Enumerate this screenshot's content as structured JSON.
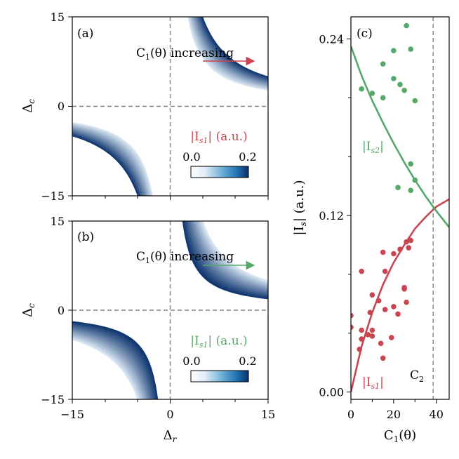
{
  "colors": {
    "blue_light": "#deebf7",
    "blue_dark": "#08306b",
    "red": "#c94550",
    "green": "#55a868",
    "dash": "#808080"
  },
  "chart_data": [
    {
      "panel": "(a)",
      "type": "heatmap",
      "xlim": [
        -15,
        15
      ],
      "ylim": [
        -15,
        15
      ],
      "xticks": [],
      "yticks": [
        "15",
        "0",
        "−15"
      ],
      "ylabel": "Δc",
      "ylabel_main": "Δ",
      "ylabel_sub": "c",
      "arrow_text": "C1(θ) increasing",
      "arrow_main": "C",
      "arrow_sub": "1",
      "arrow_rest": "(θ) increasing",
      "arrow_color": "red",
      "colorbar_title": "|Is1| (a.u.)",
      "colorbar_main": "|I",
      "colorbar_sub": "s1",
      "colorbar_rest": "| (a.u.)",
      "colorbar_color": "red",
      "colorbar_min": "0.0",
      "colorbar_max": "0.2",
      "colorbar_range": [
        0.0,
        0.2
      ],
      "bands": [
        {
          "quadrant": "upper-right",
          "product_range": [
            40,
            75
          ],
          "intensity": "dark at high C1"
        },
        {
          "quadrant": "lower-left",
          "product_range": [
            40,
            75
          ],
          "intensity": "dark at high C1"
        }
      ]
    },
    {
      "panel": "(b)",
      "type": "heatmap",
      "xlim": [
        -15,
        15
      ],
      "ylim": [
        -15,
        15
      ],
      "xticks": [
        "−15",
        "0",
        "15"
      ],
      "yticks": [
        "15",
        "0",
        "−15"
      ],
      "xlabel": "Δr",
      "xlabel_main": "Δ",
      "xlabel_sub": "r",
      "ylabel": "Δc",
      "ylabel_main": "Δ",
      "ylabel_sub": "c",
      "arrow_text": "C1(θ) increasing",
      "arrow_main": "C",
      "arrow_sub": "1",
      "arrow_rest": "(θ) increasing",
      "arrow_color": "green",
      "colorbar_title": "|Is1| (a.u.)",
      "colorbar_main": "|I",
      "colorbar_sub": "s1",
      "colorbar_rest": "| (a.u.)",
      "colorbar_color": "green",
      "colorbar_min": "0.0",
      "colorbar_max": "0.2",
      "colorbar_range": [
        0.0,
        0.2
      ],
      "bands": [
        {
          "quadrant": "upper-right",
          "product_range": [
            28,
            75
          ],
          "intensity": "dark at low C1"
        },
        {
          "quadrant": "lower-left",
          "product_range": [
            28,
            75
          ],
          "intensity": "dark at low C1"
        }
      ]
    },
    {
      "panel": "(c)",
      "type": "scatter",
      "xlim": [
        0,
        46
      ],
      "ylim": [
        -0.005,
        0.255
      ],
      "xticks": [
        0,
        20,
        40
      ],
      "xtick_labels": [
        "0",
        "20",
        "40"
      ],
      "yticks": [
        0.0,
        0.12,
        0.24
      ],
      "ytick_labels": [
        "0.00",
        "0.12",
        "0.24"
      ],
      "xlabel": "C1(θ)",
      "xlabel_main": "C",
      "xlabel_sub": "1",
      "xlabel_rest": "(θ)",
      "ylabel": "|Is| (a.u.)",
      "ylabel_main": "|I",
      "ylabel_sub": "s",
      "ylabel_rest": "| (a.u.)",
      "vline_x": 38.5,
      "vline_label": "C2",
      "vline_main": "C",
      "vline_sub": "2",
      "series": [
        {
          "name": "|Is1|",
          "label_main": "|I",
          "label_sub": "s1",
          "label_rest": "|",
          "color": "red",
          "points": [
            [
              0,
              0.052
            ],
            [
              0,
              0.044
            ],
            [
              4,
              0.029
            ],
            [
              5,
              0.036
            ],
            [
              5,
              0.042
            ],
            [
              5,
              0.082
            ],
            [
              8,
              0.039
            ],
            [
              9,
              0.054
            ],
            [
              10,
              0.038
            ],
            [
              10,
              0.042
            ],
            [
              10,
              0.066
            ],
            [
              13,
              0.062
            ],
            [
              14,
              0.033
            ],
            [
              15,
              0.023
            ],
            [
              15,
              0.095
            ],
            [
              16,
              0.082
            ],
            [
              16,
              0.056
            ],
            [
              19,
              0.037
            ],
            [
              20,
              0.058
            ],
            [
              20,
              0.094
            ],
            [
              22,
              0.053
            ],
            [
              23,
              0.097
            ],
            [
              25,
              0.07
            ],
            [
              25,
              0.071
            ],
            [
              26,
              0.102
            ],
            [
              26,
              0.061
            ],
            [
              27,
              0.098
            ],
            [
              28,
              0.103
            ]
          ],
          "fit": [
            [
              0,
              0.0
            ],
            [
              5,
              0.031
            ],
            [
              10,
              0.054
            ],
            [
              15,
              0.073
            ],
            [
              20,
              0.088
            ],
            [
              25,
              0.1
            ],
            [
              30,
              0.111
            ],
            [
              35,
              0.119
            ],
            [
              40,
              0.126
            ],
            [
              46,
              0.131
            ]
          ]
        },
        {
          "name": "|Is2|",
          "label_main": "|I",
          "label_sub": "s2",
          "label_rest": "|",
          "color": "green",
          "points": [
            [
              5,
              0.206
            ],
            [
              10,
              0.203
            ],
            [
              15,
              0.2
            ],
            [
              15,
              0.223
            ],
            [
              20,
              0.232
            ],
            [
              20,
              0.213
            ],
            [
              22,
              0.139
            ],
            [
              23,
              0.209
            ],
            [
              25,
              0.205
            ],
            [
              26,
              0.249
            ],
            [
              28,
              0.233
            ],
            [
              28,
              0.155
            ],
            [
              28,
              0.137
            ],
            [
              30,
              0.198
            ],
            [
              30,
              0.144
            ]
          ],
          "fit": [
            [
              0,
              0.235
            ],
            [
              5,
              0.215
            ],
            [
              10,
              0.198
            ],
            [
              15,
              0.183
            ],
            [
              20,
              0.169
            ],
            [
              25,
              0.156
            ],
            [
              30,
              0.144
            ],
            [
              35,
              0.133
            ],
            [
              40,
              0.123
            ],
            [
              46,
              0.112
            ]
          ]
        }
      ]
    }
  ]
}
